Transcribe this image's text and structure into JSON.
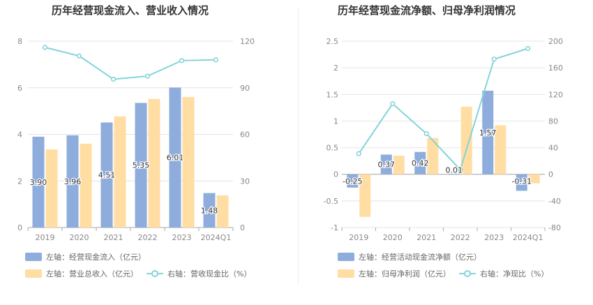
{
  "colors": {
    "bar1": "#8eaddc",
    "bar2": "#ffdda3",
    "line": "#83d4da",
    "grid": "#e4e4e4",
    "axis": "#888888"
  },
  "chart_data": [
    {
      "type": "bar",
      "title": "历年经营现金流入、营业收入情况",
      "categories": [
        "2019",
        "2020",
        "2021",
        "2022",
        "2023",
        "2024Q1"
      ],
      "left_axis": {
        "ticks": [
          "0",
          "2",
          "4",
          "6",
          "8"
        ],
        "range": [
          0,
          8
        ]
      },
      "right_axis": {
        "ticks": [
          "0",
          "30",
          "60",
          "90",
          "120"
        ],
        "range": [
          0,
          120
        ]
      },
      "series": [
        {
          "name": "左轴：经营现金流入（亿元）",
          "type": "bar",
          "axis": "left",
          "values": [
            3.9,
            3.96,
            4.51,
            5.35,
            6.01,
            1.48
          ],
          "labels": [
            "3.90",
            "3.96",
            "4.51",
            "5.35",
            "6.01",
            "1.48"
          ]
        },
        {
          "name": "左轴：营业总收入（亿元）",
          "type": "bar",
          "axis": "left",
          "values": [
            3.35,
            3.6,
            4.77,
            5.52,
            5.6,
            1.38
          ]
        },
        {
          "name": "右轴：营收现金比（%）",
          "type": "line",
          "axis": "right",
          "values": [
            116,
            110.5,
            95.5,
            97.5,
            107.5,
            108
          ]
        }
      ]
    },
    {
      "type": "bar",
      "title": "历年经营现金流净额、归母净利润情况",
      "categories": [
        "2019",
        "2020",
        "2021",
        "2022",
        "2023",
        "2024Q1"
      ],
      "left_axis": {
        "ticks": [
          "-1",
          "-0.5",
          "0",
          "0.5",
          "1",
          "1.5",
          "2",
          "2.5"
        ],
        "range": [
          -1,
          2.5
        ]
      },
      "right_axis": {
        "ticks": [
          "-80",
          "-40",
          "0",
          "40",
          "80",
          "120",
          "160",
          "200"
        ],
        "range": [
          -80,
          200
        ]
      },
      "series": [
        {
          "name": "左轴：经营活动现金流净额（亿元）",
          "type": "bar",
          "axis": "left",
          "values": [
            -0.25,
            0.37,
            0.42,
            0.01,
            1.57,
            -0.31
          ],
          "labels": [
            "-0.25",
            "0.37",
            "0.42",
            "0.01",
            "1.57",
            "-0.31"
          ]
        },
        {
          "name": "左轴：归母净利润（亿元）",
          "type": "bar",
          "axis": "left",
          "values": [
            -0.8,
            0.35,
            0.68,
            1.27,
            0.92,
            -0.17
          ]
        },
        {
          "name": "右轴：净现比（%）",
          "type": "line",
          "axis": "right",
          "values": [
            31,
            106,
            61,
            7,
            173,
            189
          ]
        }
      ]
    }
  ]
}
